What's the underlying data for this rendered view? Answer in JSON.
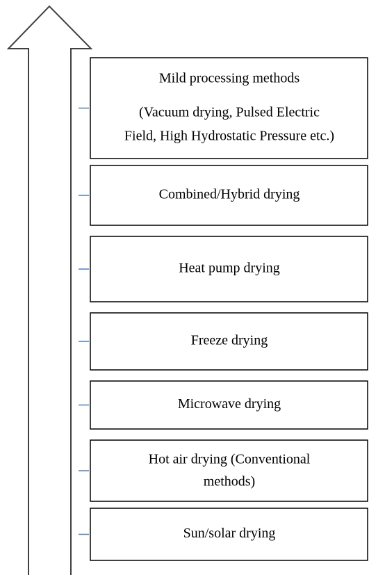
{
  "nodes": [
    {
      "lines": [
        "Mild processing methods",
        "(Vacuum drying, Pulsed Electric",
        "Field, High Hydrostatic Pressure etc.)"
      ]
    },
    {
      "lines": [
        "Combined/Hybrid drying"
      ]
    },
    {
      "lines": [
        "Heat pump drying"
      ]
    },
    {
      "lines": [
        "Freeze drying"
      ]
    },
    {
      "lines": [
        "Microwave drying"
      ]
    },
    {
      "lines": [
        "Hot air drying (Conventional",
        "methods)"
      ]
    },
    {
      "lines": [
        "Sun/solar drying"
      ]
    }
  ]
}
